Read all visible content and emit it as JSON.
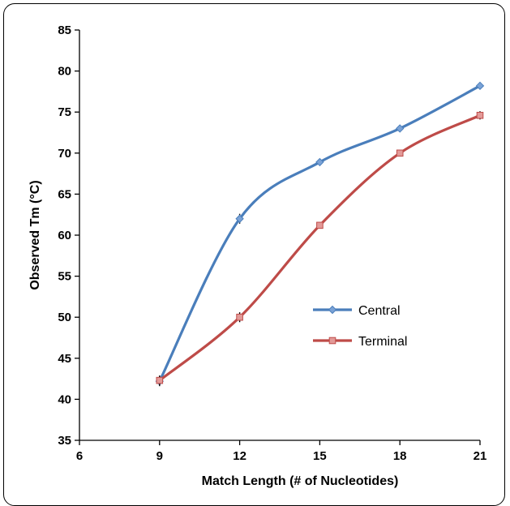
{
  "chart_data": {
    "type": "line",
    "xlabel": "Match Length (# of Nucleotides)",
    "ylabel": "Observed Tm (°C)",
    "xlim": [
      6,
      21
    ],
    "ylim": [
      35,
      85
    ],
    "x_ticks": [
      6,
      9,
      12,
      15,
      18,
      21
    ],
    "y_ticks": [
      35,
      40,
      45,
      50,
      55,
      60,
      65,
      70,
      75,
      80,
      85
    ],
    "grid": false,
    "legend_position": "center-right",
    "series": [
      {
        "name": "Central",
        "color": "#4a7ebb",
        "marker": "diamond",
        "x": [
          9,
          12,
          15,
          18,
          21
        ],
        "y": [
          42.2,
          62.0,
          68.9,
          73.0,
          78.2
        ],
        "error": [
          0.6,
          0.6,
          0.3,
          0.4,
          0.3
        ]
      },
      {
        "name": "Terminal",
        "color": "#be4b48",
        "marker": "square",
        "x": [
          9,
          12,
          15,
          18,
          21
        ],
        "y": [
          42.3,
          50.0,
          61.2,
          70.0,
          74.6
        ],
        "error": [
          0.6,
          0.6,
          0.3,
          0.4,
          0.5
        ]
      }
    ]
  }
}
